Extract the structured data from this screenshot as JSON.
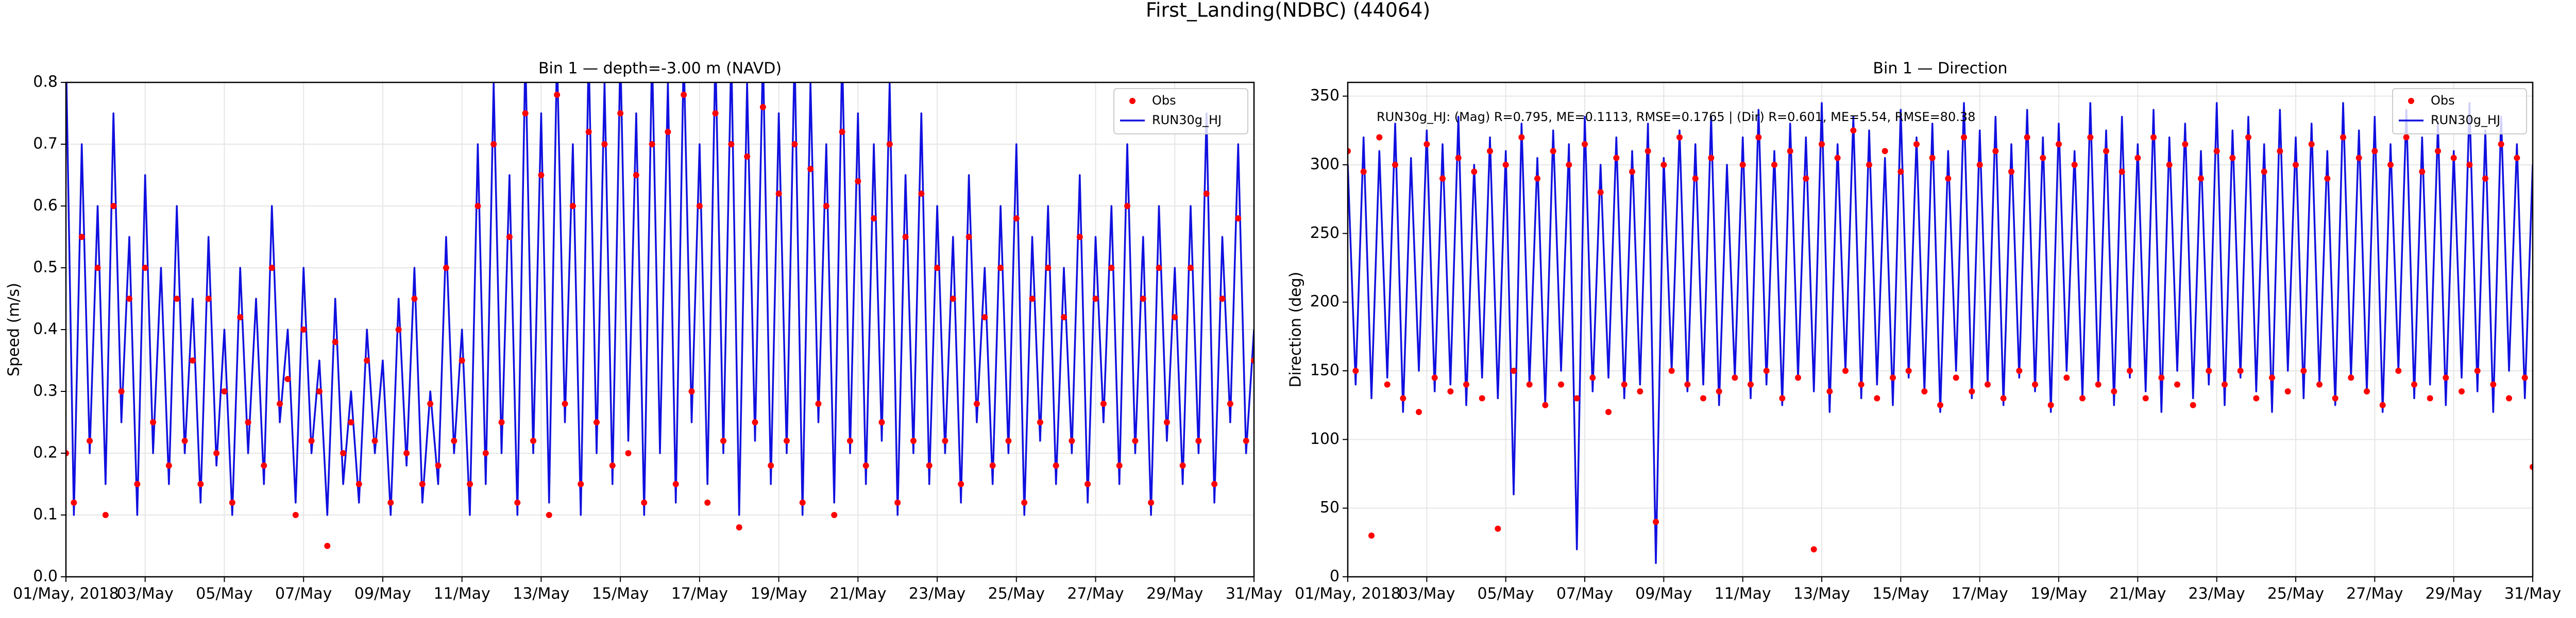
{
  "title": "First_Landing(NDBC) (44064)",
  "chart_data": [
    {
      "type": "line",
      "title": "Bin 1 — depth=-3.00 m (NAVD)",
      "ylabel": "Speed (m/s)",
      "grid": true,
      "legend": "upper right",
      "xlim": [
        0,
        30
      ],
      "ylim": [
        0,
        0.8
      ],
      "xticks": [
        {
          "value": 0,
          "label": "01/May, 2018"
        },
        {
          "value": 2,
          "label": "03/May"
        },
        {
          "value": 4,
          "label": "05/May"
        },
        {
          "value": 6,
          "label": "07/May"
        },
        {
          "value": 8,
          "label": "09/May"
        },
        {
          "value": 10,
          "label": "11/May"
        },
        {
          "value": 12,
          "label": "13/May"
        },
        {
          "value": 14,
          "label": "15/May"
        },
        {
          "value": 16,
          "label": "17/May"
        },
        {
          "value": 18,
          "label": "19/May"
        },
        {
          "value": 20,
          "label": "21/May"
        },
        {
          "value": 22,
          "label": "23/May"
        },
        {
          "value": 24,
          "label": "25/May"
        },
        {
          "value": 26,
          "label": "27/May"
        },
        {
          "value": 28,
          "label": "29/May"
        },
        {
          "value": 30,
          "label": "31/May"
        }
      ],
      "yticks": [
        {
          "value": 0,
          "label": "0.0"
        },
        0.1,
        0.2,
        0.3,
        0.4,
        0.5,
        0.6,
        0.7,
        0.8
      ],
      "x": [
        0,
        0.2,
        0.4,
        0.6,
        0.8,
        1,
        1.2,
        1.4,
        1.6,
        1.8,
        2,
        2.2,
        2.4,
        2.6,
        2.8,
        3,
        3.2,
        3.4,
        3.6,
        3.8,
        4,
        4.2,
        4.4,
        4.6,
        4.8,
        5,
        5.2,
        5.4,
        5.6,
        5.8,
        6,
        6.2,
        6.4,
        6.6,
        6.8,
        7,
        7.2,
        7.4,
        7.6,
        7.8,
        8,
        8.2,
        8.4,
        8.6,
        8.8,
        9,
        9.2,
        9.4,
        9.6,
        9.8,
        10,
        10.2,
        10.4,
        10.6,
        10.8,
        11,
        11.2,
        11.4,
        11.6,
        11.8,
        12,
        12.2,
        12.4,
        12.6,
        12.8,
        13,
        13.2,
        13.4,
        13.6,
        13.8,
        14,
        14.2,
        14.4,
        14.6,
        14.8,
        15,
        15.2,
        15.4,
        15.6,
        15.8,
        16,
        16.2,
        16.4,
        16.6,
        16.8,
        17,
        17.2,
        17.4,
        17.6,
        17.8,
        18,
        18.2,
        18.4,
        18.6,
        18.8,
        19,
        19.2,
        19.4,
        19.6,
        19.8,
        20,
        20.2,
        20.4,
        20.6,
        20.8,
        21,
        21.2,
        21.4,
        21.6,
        21.8,
        22,
        22.2,
        22.4,
        22.6,
        22.8,
        23,
        23.2,
        23.4,
        23.6,
        23.8,
        24,
        24.2,
        24.4,
        24.6,
        24.8,
        25,
        25.2,
        25.4,
        25.6,
        25.8,
        26,
        26.2,
        26.4,
        26.6,
        26.8,
        27,
        27.2,
        27.4,
        27.6,
        27.8,
        28,
        28.2,
        28.4,
        28.6,
        28.8,
        29,
        29.2,
        29.4,
        29.6,
        29.8,
        30
      ],
      "series": [
        {
          "name": "Obs",
          "style": "scatter",
          "color": "#ff0000",
          "values": [
            0.2,
            0.12,
            0.55,
            0.22,
            0.5,
            0.1,
            0.6,
            0.3,
            0.45,
            0.15,
            0.5,
            0.25,
            null,
            0.18,
            0.45,
            0.22,
            0.35,
            0.15,
            0.45,
            0.2,
            0.3,
            0.12,
            0.42,
            0.25,
            null,
            0.18,
            0.5,
            0.28,
            0.32,
            0.1,
            0.4,
            0.22,
            0.3,
            0.05,
            0.38,
            0.2,
            0.25,
            0.15,
            0.35,
            0.22,
            null,
            0.12,
            0.4,
            0.2,
            0.45,
            0.15,
            0.28,
            0.18,
            0.5,
            0.22,
            0.35,
            0.15,
            0.6,
            0.2,
            0.7,
            0.25,
            0.55,
            0.12,
            0.75,
            0.22,
            0.65,
            0.1,
            0.78,
            0.28,
            0.6,
            0.15,
            0.72,
            0.25,
            0.7,
            0.18,
            0.75,
            0.2,
            0.65,
            0.12,
            0.7,
            null,
            0.72,
            0.15,
            0.78,
            0.3,
            0.6,
            0.12,
            0.75,
            0.22,
            0.7,
            0.08,
            0.68,
            0.25,
            0.76,
            0.18,
            0.62,
            0.22,
            0.7,
            0.12,
            0.66,
            0.28,
            0.6,
            0.1,
            0.72,
            0.22,
            0.64,
            0.18,
            0.58,
            0.25,
            0.7,
            0.12,
            0.55,
            0.22,
            0.62,
            0.18,
            0.5,
            0.22,
            0.45,
            0.15,
            0.55,
            0.28,
            0.42,
            0.18,
            0.5,
            0.22,
            0.58,
            0.12,
            0.45,
            0.25,
            0.5,
            0.18,
            0.42,
            0.22,
            0.55,
            0.15,
            0.45,
            0.28,
            0.5,
            0.18,
            0.6,
            0.22,
            0.45,
            0.12,
            0.5,
            0.25,
            0.42,
            0.18,
            0.5,
            0.22,
            0.62,
            0.15,
            0.45,
            0.28,
            0.58,
            0.22,
            0.35
          ]
        },
        {
          "name": "RUN30g_HJ",
          "style": "line",
          "color": "#1010e0",
          "values": [
            0.85,
            0.1,
            0.7,
            0.2,
            0.6,
            0.15,
            0.75,
            0.25,
            0.55,
            0.1,
            0.65,
            0.2,
            0.5,
            0.15,
            0.6,
            0.2,
            0.45,
            0.12,
            0.55,
            0.18,
            0.4,
            0.1,
            0.5,
            0.2,
            0.45,
            0.15,
            0.6,
            0.25,
            0.4,
            0.12,
            0.5,
            0.2,
            0.35,
            0.1,
            0.45,
            0.15,
            0.3,
            0.12,
            0.4,
            0.2,
            0.35,
            0.1,
            0.45,
            0.18,
            0.5,
            0.12,
            0.3,
            0.15,
            0.55,
            0.2,
            0.4,
            0.1,
            0.7,
            0.15,
            0.8,
            0.2,
            0.65,
            0.1,
            0.85,
            0.2,
            0.75,
            0.12,
            0.85,
            0.25,
            0.7,
            0.1,
            0.85,
            0.2,
            0.8,
            0.15,
            0.85,
            0.22,
            0.75,
            0.1,
            0.85,
            0.2,
            0.8,
            0.12,
            0.85,
            0.25,
            0.7,
            0.15,
            0.85,
            0.2,
            0.85,
            0.1,
            0.8,
            0.22,
            0.85,
            0.15,
            0.75,
            0.2,
            0.85,
            0.1,
            0.8,
            0.25,
            0.7,
            0.12,
            0.85,
            0.2,
            0.75,
            0.15,
            0.7,
            0.22,
            0.8,
            0.1,
            0.65,
            0.2,
            0.75,
            0.15,
            0.6,
            0.2,
            0.55,
            0.12,
            0.65,
            0.25,
            0.5,
            0.15,
            0.6,
            0.2,
            0.7,
            0.1,
            0.55,
            0.22,
            0.6,
            0.15,
            0.5,
            0.2,
            0.65,
            0.12,
            0.55,
            0.25,
            0.6,
            0.15,
            0.7,
            0.2,
            0.55,
            0.1,
            0.6,
            0.22,
            0.5,
            0.15,
            0.6,
            0.2,
            0.75,
            0.12,
            0.55,
            0.25,
            0.7,
            0.2,
            0.4
          ]
        }
      ]
    },
    {
      "type": "line",
      "title": "Bin 1 — Direction",
      "ylabel": "Direction (deg)",
      "grid": true,
      "legend": "upper right",
      "annotation": "RUN30g_HJ: (Mag) R=0.795, ME=0.1113, RMSE=0.1765 | (Dir) R=0.601, ME=5.54, RMSE=80.38",
      "xlim": [
        0,
        30
      ],
      "ylim": [
        0,
        360
      ],
      "xticks": [
        {
          "value": 0,
          "label": "01/May, 2018"
        },
        {
          "value": 2,
          "label": "03/May"
        },
        {
          "value": 4,
          "label": "05/May"
        },
        {
          "value": 6,
          "label": "07/May"
        },
        {
          "value": 8,
          "label": "09/May"
        },
        {
          "value": 10,
          "label": "11/May"
        },
        {
          "value": 12,
          "label": "13/May"
        },
        {
          "value": 14,
          "label": "15/May"
        },
        {
          "value": 16,
          "label": "17/May"
        },
        {
          "value": 18,
          "label": "19/May"
        },
        {
          "value": 20,
          "label": "21/May"
        },
        {
          "value": 22,
          "label": "23/May"
        },
        {
          "value": 24,
          "label": "25/May"
        },
        {
          "value": 26,
          "label": "27/May"
        },
        {
          "value": 28,
          "label": "29/May"
        },
        {
          "value": 30,
          "label": "31/May"
        }
      ],
      "yticks": [
        0,
        50,
        100,
        150,
        200,
        250,
        300,
        350
      ],
      "x": [
        0,
        0.2,
        0.4,
        0.6,
        0.8,
        1,
        1.2,
        1.4,
        1.6,
        1.8,
        2,
        2.2,
        2.4,
        2.6,
        2.8,
        3,
        3.2,
        3.4,
        3.6,
        3.8,
        4,
        4.2,
        4.4,
        4.6,
        4.8,
        5,
        5.2,
        5.4,
        5.6,
        5.8,
        6,
        6.2,
        6.4,
        6.6,
        6.8,
        7,
        7.2,
        7.4,
        7.6,
        7.8,
        8,
        8.2,
        8.4,
        8.6,
        8.8,
        9,
        9.2,
        9.4,
        9.6,
        9.8,
        10,
        10.2,
        10.4,
        10.6,
        10.8,
        11,
        11.2,
        11.4,
        11.6,
        11.8,
        12,
        12.2,
        12.4,
        12.6,
        12.8,
        13,
        13.2,
        13.4,
        13.6,
        13.8,
        14,
        14.2,
        14.4,
        14.6,
        14.8,
        15,
        15.2,
        15.4,
        15.6,
        15.8,
        16,
        16.2,
        16.4,
        16.6,
        16.8,
        17,
        17.2,
        17.4,
        17.6,
        17.8,
        18,
        18.2,
        18.4,
        18.6,
        18.8,
        19,
        19.2,
        19.4,
        19.6,
        19.8,
        20,
        20.2,
        20.4,
        20.6,
        20.8,
        21,
        21.2,
        21.4,
        21.6,
        21.8,
        22,
        22.2,
        22.4,
        22.6,
        22.8,
        23,
        23.2,
        23.4,
        23.6,
        23.8,
        24,
        24.2,
        24.4,
        24.6,
        24.8,
        25,
        25.2,
        25.4,
        25.6,
        25.8,
        26,
        26.2,
        26.4,
        26.6,
        26.8,
        27,
        27.2,
        27.4,
        27.6,
        27.8,
        28,
        28.2,
        28.4,
        28.6,
        28.8,
        29,
        29.2,
        29.4,
        29.6,
        29.8,
        30
      ],
      "series": [
        {
          "name": "Obs",
          "style": "scatter",
          "color": "#ff0000",
          "values": [
            310,
            150,
            295,
            30,
            320,
            140,
            300,
            130,
            null,
            120,
            315,
            145,
            290,
            135,
            305,
            140,
            295,
            130,
            310,
            35,
            300,
            150,
            320,
            140,
            290,
            125,
            310,
            140,
            300,
            130,
            315,
            145,
            280,
            120,
            305,
            140,
            295,
            135,
            310,
            40,
            300,
            150,
            320,
            140,
            290,
            130,
            305,
            135,
            null,
            145,
            300,
            140,
            320,
            150,
            300,
            130,
            310,
            145,
            290,
            20,
            315,
            135,
            305,
            150,
            325,
            140,
            300,
            130,
            310,
            145,
            295,
            150,
            315,
            135,
            305,
            125,
            290,
            145,
            320,
            135,
            300,
            140,
            310,
            130,
            295,
            150,
            320,
            140,
            305,
            125,
            315,
            145,
            300,
            130,
            320,
            140,
            310,
            135,
            295,
            150,
            305,
            130,
            320,
            145,
            300,
            140,
            315,
            125,
            290,
            150,
            310,
            140,
            305,
            150,
            320,
            130,
            295,
            145,
            310,
            135,
            300,
            150,
            315,
            140,
            290,
            130,
            320,
            145,
            305,
            135,
            310,
            125,
            300,
            150,
            320,
            140,
            295,
            130,
            310,
            145,
            305,
            135,
            300,
            150,
            290,
            140,
            315,
            130,
            305,
            145,
            80
          ]
        },
        {
          "name": "RUN30g_HJ",
          "style": "line",
          "color": "#1010e0",
          "values": [
            300,
            140,
            320,
            130,
            310,
            145,
            330,
            120,
            305,
            150,
            325,
            135,
            315,
            140,
            335,
            125,
            300,
            145,
            320,
            130,
            310,
            60,
            330,
            140,
            305,
            125,
            325,
            150,
            315,
            20,
            335,
            135,
            300,
            145,
            320,
            130,
            310,
            140,
            330,
            10,
            305,
            150,
            325,
            135,
            315,
            140,
            335,
            125,
            300,
            145,
            320,
            130,
            340,
            140,
            310,
            125,
            330,
            145,
            320,
            135,
            345,
            120,
            315,
            150,
            335,
            130,
            325,
            140,
            305,
            125,
            340,
            145,
            320,
            135,
            330,
            120,
            310,
            150,
            345,
            130,
            325,
            140,
            335,
            125,
            315,
            145,
            340,
            135,
            320,
            120,
            330,
            150,
            310,
            130,
            345,
            140,
            325,
            125,
            335,
            145,
            315,
            135,
            340,
            120,
            320,
            150,
            330,
            130,
            310,
            140,
            345,
            125,
            325,
            145,
            335,
            135,
            315,
            120,
            340,
            150,
            320,
            130,
            330,
            140,
            310,
            125,
            345,
            145,
            325,
            135,
            335,
            120,
            315,
            150,
            340,
            130,
            320,
            140,
            330,
            125,
            310,
            145,
            345,
            135,
            325,
            120,
            335,
            150,
            315,
            130,
            300
          ]
        }
      ]
    }
  ]
}
